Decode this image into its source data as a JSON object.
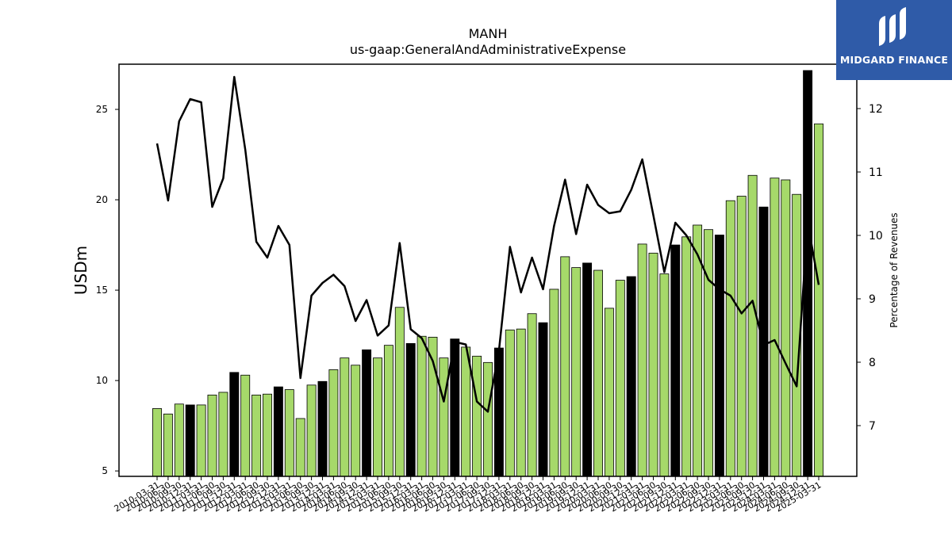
{
  "chart_data": {
    "type": "bar",
    "title": "MANH",
    "subtitle": "us-gaap:GeneralAndAdministrativeExpense",
    "ylabel": "USDm",
    "ylabel_right": "Percentage of Revenues",
    "ylim": [
      4.7,
      27.5
    ],
    "ylim_right": [
      6.2,
      12.7
    ],
    "yticks": [
      5,
      10,
      15,
      20,
      25
    ],
    "yticks_right": [
      7,
      8,
      9,
      10,
      11,
      12
    ],
    "colors": {
      "bar": "#a6d96a",
      "bar_highlight": "#000000",
      "line": "#000000"
    },
    "categories": [
      "2010-03-31",
      "2010-06-30",
      "2010-09-30",
      "2010-12-31",
      "2011-03-31",
      "2011-06-30",
      "2011-09-30",
      "2011-12-31",
      "2012-03-31",
      "2012-06-30",
      "2012-09-30",
      "2012-12-31",
      "2013-03-31",
      "2013-06-30",
      "2013-09-30",
      "2013-12-31",
      "2014-03-31",
      "2014-06-30",
      "2014-09-30",
      "2014-12-31",
      "2015-03-31",
      "2015-06-30",
      "2015-09-30",
      "2015-12-31",
      "2016-03-31",
      "2016-06-30",
      "2016-09-30",
      "2016-12-31",
      "2017-03-31",
      "2017-06-30",
      "2017-09-30",
      "2017-12-31",
      "2018-03-31",
      "2018-06-30",
      "2018-09-30",
      "2018-12-31",
      "2019-03-31",
      "2019-06-30",
      "2019-09-30",
      "2019-12-31",
      "2020-03-31",
      "2020-06-30",
      "2020-09-30",
      "2020-12-31",
      "2021-03-31",
      "2021-06-30",
      "2021-09-30",
      "2021-12-31",
      "2022-03-31",
      "2022-06-30",
      "2022-09-30",
      "2022-12-31",
      "2023-03-31",
      "2023-06-30",
      "2023-09-30",
      "2023-12-31",
      "2024-03-31",
      "2024-06-30",
      "2024-09-30",
      "2024-12-31",
      "2025-03-31"
    ],
    "series": [
      {
        "type": "bar",
        "values": [
          8.45,
          8.15,
          8.7,
          8.65,
          8.65,
          9.2,
          9.35,
          10.45,
          10.3,
          9.2,
          9.25,
          9.65,
          9.5,
          7.9,
          9.75,
          9.95,
          10.6,
          11.25,
          10.85,
          11.7,
          11.25,
          11.95,
          14.05,
          12.05,
          12.45,
          12.4,
          11.25,
          12.3,
          11.85,
          11.35,
          11.0,
          11.8,
          12.8,
          12.85,
          13.7,
          13.2,
          15.05,
          16.85,
          16.25,
          16.5,
          16.1,
          14.0,
          15.55,
          15.75,
          17.55,
          17.05,
          15.9,
          17.5,
          17.95,
          18.6,
          18.35,
          18.05,
          19.95,
          20.2,
          21.35,
          19.6,
          21.2,
          21.1,
          20.3,
          27.15,
          24.2
        ],
        "highlight": [
          false,
          false,
          false,
          true,
          false,
          false,
          false,
          true,
          false,
          false,
          false,
          true,
          false,
          false,
          false,
          true,
          false,
          false,
          false,
          true,
          false,
          false,
          false,
          true,
          false,
          false,
          false,
          true,
          false,
          false,
          false,
          true,
          false,
          false,
          false,
          true,
          false,
          false,
          false,
          true,
          false,
          false,
          false,
          true,
          false,
          false,
          false,
          true,
          false,
          false,
          false,
          true,
          false,
          false,
          false,
          true,
          false,
          false,
          false,
          true,
          false
        ]
      },
      {
        "type": "line",
        "axis": "right",
        "values": [
          11.45,
          10.55,
          11.8,
          12.15,
          12.1,
          10.45,
          10.9,
          12.5,
          11.35,
          9.9,
          9.65,
          10.15,
          9.85,
          7.75,
          9.05,
          9.25,
          9.38,
          9.2,
          8.65,
          8.98,
          8.42,
          8.58,
          9.88,
          8.52,
          8.38,
          8.02,
          7.38,
          8.32,
          8.28,
          7.38,
          7.22,
          8.18,
          9.82,
          9.1,
          9.65,
          9.15,
          10.15,
          10.88,
          10.02,
          10.8,
          10.48,
          10.35,
          10.38,
          10.72,
          11.2,
          10.32,
          9.42,
          10.2,
          10.0,
          9.7,
          9.3,
          9.15,
          9.05,
          8.77,
          8.97,
          8.27,
          8.35,
          7.98,
          7.62,
          10.2,
          9.22
        ]
      }
    ]
  },
  "logo": {
    "text": "MIDGARD FINANCE"
  }
}
